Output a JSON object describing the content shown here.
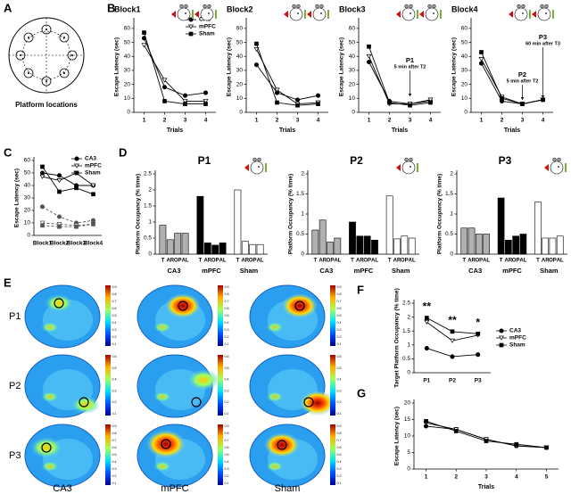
{
  "panel_labels": [
    "A",
    "B",
    "C",
    "D",
    "E",
    "F",
    "G"
  ],
  "diagram": {
    "title": "Platform locations"
  },
  "chart_data": [
    {
      "type": "line",
      "title": "Block1",
      "xlabel": "Trials",
      "ylabel": "Escape Latency (sec)",
      "x": [
        1,
        2,
        3,
        4
      ],
      "xlim": [
        0.5,
        4.5
      ],
      "xticks": [
        1,
        2,
        3,
        4
      ],
      "ylim": [
        0,
        65
      ],
      "yticks": [
        0,
        10,
        20,
        30,
        40,
        50,
        60
      ],
      "legend": "upper right",
      "series": [
        {
          "name": "CA3",
          "color": "#000000",
          "marker": "circle",
          "filled": true,
          "values": [
            53,
            18,
            12,
            14
          ]
        },
        {
          "name": "mPFC",
          "color": "#000000",
          "marker": "triangle",
          "filled": false,
          "values": [
            48,
            23,
            8,
            8
          ]
        },
        {
          "name": "Sham",
          "color": "#000000",
          "marker": "square",
          "filled": true,
          "values": [
            57,
            8,
            6,
            6
          ]
        }
      ]
    },
    {
      "type": "line",
      "title": "Block2",
      "xlabel": "Trials",
      "ylabel": "Escape Latency (sec)",
      "x": [
        1,
        2,
        3,
        4
      ],
      "xlim": [
        0.5,
        4.5
      ],
      "xticks": [
        1,
        2,
        3,
        4
      ],
      "ylim": [
        0,
        65
      ],
      "yticks": [
        0,
        10,
        20,
        30,
        40,
        50,
        60
      ],
      "series": [
        {
          "color": "#000000",
          "marker": "circle",
          "filled": true,
          "values": [
            34,
            14,
            9,
            12
          ]
        },
        {
          "color": "#000000",
          "marker": "triangle",
          "filled": false,
          "values": [
            45,
            16,
            6,
            7
          ]
        },
        {
          "color": "#000000",
          "marker": "square",
          "filled": true,
          "values": [
            49,
            7,
            5,
            6
          ]
        }
      ]
    },
    {
      "type": "line",
      "title": "Block3",
      "xlabel": "Trials",
      "ylabel": "Escape Latency (sec)",
      "x": [
        1,
        2,
        3,
        4
      ],
      "xlim": [
        0.5,
        4.5
      ],
      "xticks": [
        1,
        2,
        3,
        4
      ],
      "ylim": [
        0,
        65
      ],
      "yticks": [
        0,
        10,
        20,
        30,
        40,
        50,
        60
      ],
      "annotations": [
        "P1",
        "5 min after T2"
      ],
      "series": [
        {
          "color": "#000000",
          "marker": "circle",
          "filled": true,
          "values": [
            36,
            8,
            6,
            8
          ]
        },
        {
          "color": "#000000",
          "marker": "triangle",
          "filled": false,
          "values": [
            40,
            6,
            6,
            9
          ]
        },
        {
          "color": "#000000",
          "marker": "square",
          "filled": true,
          "values": [
            47,
            7,
            5,
            7
          ]
        }
      ]
    },
    {
      "type": "line",
      "title": "Block4",
      "xlabel": "Trials",
      "ylabel": "Escape Latency (sec)",
      "x": [
        1,
        2,
        3,
        4
      ],
      "xlim": [
        0.5,
        4.5
      ],
      "xticks": [
        1,
        2,
        3,
        4
      ],
      "ylim": [
        0,
        65
      ],
      "yticks": [
        0,
        10,
        20,
        30,
        40,
        50,
        60
      ],
      "annotations": [
        "P2",
        "5 min after T2",
        "P3",
        "60 min after T3"
      ],
      "series": [
        {
          "color": "#000000",
          "marker": "circle",
          "filled": true,
          "values": [
            35,
            8,
            6,
            9
          ]
        },
        {
          "color": "#000000",
          "marker": "triangle",
          "filled": false,
          "values": [
            38,
            11,
            6,
            9
          ]
        },
        {
          "color": "#000000",
          "marker": "square",
          "filled": true,
          "values": [
            43,
            10,
            6,
            9
          ]
        }
      ]
    },
    {
      "type": "line",
      "ylabel": "Escape Latency (sec)",
      "categories": [
        "Block1",
        "Block2",
        "Block3",
        "Block4"
      ],
      "ylim": [
        0,
        60
      ],
      "yticks": [
        0,
        10,
        20,
        30,
        40,
        50,
        60
      ],
      "legend": "upper right",
      "series": [
        {
          "name": "CA3",
          "color": "#000000",
          "marker": "circle",
          "filled": true,
          "values": [
            50,
            48,
            40,
            40
          ]
        },
        {
          "name": "mPFC",
          "color": "#000000",
          "marker": "triangle",
          "filled": false,
          "values": [
            47,
            44,
            50,
            40
          ]
        },
        {
          "name": "Sham",
          "color": "#000000",
          "marker": "square",
          "filled": true,
          "values": [
            55,
            35,
            38,
            33
          ]
        },
        {
          "color": "#555555",
          "marker": "circle",
          "filled": true,
          "dashed": true,
          "values": [
            23,
            15,
            10,
            12
          ]
        },
        {
          "color": "#555555",
          "marker": "triangle",
          "filled": false,
          "dashed": true,
          "values": [
            10,
            9,
            8,
            9
          ]
        },
        {
          "color": "#555555",
          "marker": "square",
          "filled": true,
          "dashed": true,
          "values": [
            8,
            7,
            7,
            9
          ]
        }
      ]
    },
    {
      "type": "bar",
      "title": "P1",
      "ylabel": "Platform Occupancy (% time)",
      "categories": [
        "T",
        "AR",
        "OP",
        "AL"
      ],
      "ylim": [
        0,
        2.5
      ],
      "yticks": [
        0,
        0.5,
        1,
        1.5,
        2,
        2.5
      ],
      "series": [
        {
          "name": "CA3",
          "color": "#b0b0b0",
          "values": [
            0.9,
            0.45,
            0.65,
            0.65
          ]
        },
        {
          "name": "mPFC",
          "color": "#000000",
          "values": [
            1.8,
            0.35,
            0.28,
            0.35
          ]
        },
        {
          "name": "Sham",
          "color": "#ffffff",
          "values": [
            2.0,
            0.4,
            0.3,
            0.3
          ]
        }
      ]
    },
    {
      "type": "bar",
      "title": "P2",
      "ylabel": "Platform Occupancy (% time)",
      "categories": [
        "T",
        "AR",
        "OP",
        "AL"
      ],
      "ylim": [
        0,
        2
      ],
      "yticks": [
        0,
        0.5,
        1,
        1.5,
        2
      ],
      "series": [
        {
          "name": "CA3",
          "color": "#b0b0b0",
          "values": [
            0.6,
            0.85,
            0.3,
            0.4
          ]
        },
        {
          "name": "mPFC",
          "color": "#000000",
          "values": [
            0.8,
            0.45,
            0.45,
            0.35
          ]
        },
        {
          "name": "Sham",
          "color": "#ffffff",
          "values": [
            1.45,
            0.38,
            0.45,
            0.4
          ]
        }
      ]
    },
    {
      "type": "bar",
      "title": "P3",
      "ylabel": "Platform Occupancy (% time)",
      "categories": [
        "T",
        "AR",
        "OP",
        "AL"
      ],
      "ylim": [
        0,
        2
      ],
      "yticks": [
        0,
        0.5,
        1,
        1.5,
        2
      ],
      "series": [
        {
          "name": "CA3",
          "color": "#b0b0b0",
          "values": [
            0.65,
            0.65,
            0.5,
            0.5
          ]
        },
        {
          "name": "mPFC",
          "color": "#000000",
          "values": [
            1.4,
            0.35,
            0.45,
            0.5
          ]
        },
        {
          "name": "Sham",
          "color": "#ffffff",
          "values": [
            1.3,
            0.4,
            0.4,
            0.45
          ]
        }
      ]
    },
    {
      "type": "line",
      "ylabel": "Target Platform Occupancy (% time)",
      "categories": [
        "P1",
        "P2",
        "P3"
      ],
      "ylim": [
        0,
        2.5
      ],
      "yticks": [
        0,
        0.5,
        1,
        1.5,
        2,
        2.5
      ],
      "legend": "right",
      "annotations": [
        "**",
        "**",
        "*"
      ],
      "series": [
        {
          "name": "CA3",
          "color": "#000000",
          "marker": "circle",
          "filled": true,
          "values": [
            0.88,
            0.58,
            0.65
          ]
        },
        {
          "name": "mPFC",
          "color": "#000000",
          "marker": "triangle",
          "filled": false,
          "values": [
            1.82,
            1.15,
            1.35
          ]
        },
        {
          "name": "Sham",
          "color": "#000000",
          "marker": "square",
          "filled": true,
          "values": [
            1.97,
            1.48,
            1.4
          ]
        }
      ]
    },
    {
      "type": "line",
      "xlabel": "Trials",
      "ylabel": "Escape Latency (sec)",
      "x": [
        1,
        2,
        3,
        4,
        5
      ],
      "xlim": [
        0.6,
        5.4
      ],
      "xticks": [
        1,
        2,
        3,
        4,
        5
      ],
      "ylim": [
        0,
        20
      ],
      "yticks": [
        0,
        5,
        10,
        15,
        20
      ],
      "series": [
        {
          "color": "#000000",
          "marker": "circle",
          "filled": true,
          "values": [
            13,
            12,
            9,
            7,
            6.5
          ]
        },
        {
          "color": "#000000",
          "marker": "triangle",
          "filled": false,
          "values": [
            14,
            12,
            9,
            7,
            6.5
          ]
        },
        {
          "color": "#000000",
          "marker": "square",
          "filled": true,
          "values": [
            14.5,
            11.5,
            8.5,
            7.5,
            6.5
          ]
        }
      ]
    }
  ],
  "heatmaps": {
    "row_labels": [
      "P1",
      "P2",
      "P3"
    ],
    "column_labels": [
      "CA3",
      "mPFC",
      "Sham"
    ],
    "colorbar_ticks": [
      [
        0.9,
        0.8,
        0.7,
        0.6,
        0.5,
        0.4,
        0.3,
        0.2,
        0.1
      ],
      [
        0.6,
        0.5,
        0.4,
        0.3,
        0.2,
        0.1
      ],
      [
        0.9,
        0.8,
        0.7,
        0.6,
        0.5,
        0.4,
        0.3,
        0.2,
        0.1
      ]
    ]
  }
}
